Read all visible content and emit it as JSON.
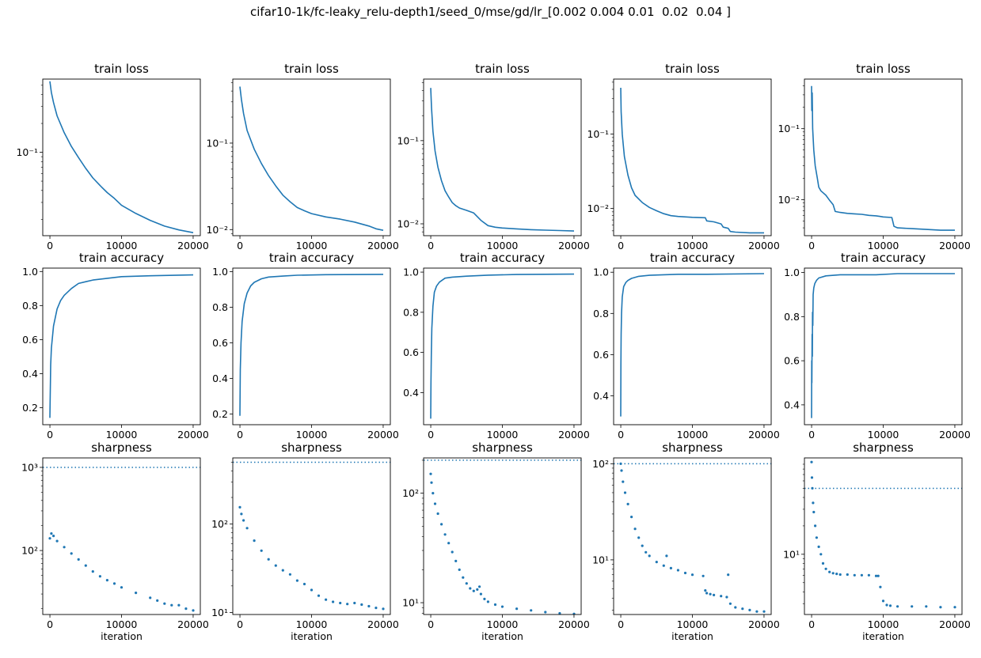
{
  "figure": {
    "suptitle": "cifar10-1k/fc-leaky_relu-depth1/seed_0/mse/gd/lr_[0.002 0.004 0.01  0.02  0.04 ]",
    "line_color": "#1f77b4"
  },
  "chart_data": [
    {
      "type": "line",
      "title": "train loss",
      "xlabel": "",
      "ylog": true,
      "xlim": [
        -1000,
        21000
      ],
      "ylim": [
        0.0135,
        0.58
      ],
      "xticks": [
        0,
        10000,
        20000
      ],
      "xtick_labels": [
        "0",
        "10000",
        "20000"
      ],
      "yticks": [
        0.1
      ],
      "ytick_labels": [
        "10⁻¹"
      ],
      "x": [
        0,
        200,
        500,
        1000,
        2000,
        3000,
        4000,
        5000,
        6000,
        7000,
        8000,
        9000,
        10000,
        12000,
        14000,
        16000,
        18000,
        20000
      ],
      "y": [
        0.55,
        0.42,
        0.33,
        0.24,
        0.16,
        0.115,
        0.088,
        0.068,
        0.054,
        0.045,
        0.038,
        0.033,
        0.028,
        0.023,
        0.0195,
        0.017,
        0.0155,
        0.0145
      ]
    },
    {
      "type": "line",
      "title": "train loss",
      "xlabel": "",
      "ylog": true,
      "xlim": [
        -1000,
        21000
      ],
      "ylim": [
        0.0085,
        0.55
      ],
      "xticks": [
        0,
        10000,
        20000
      ],
      "xtick_labels": [
        "0",
        "10000",
        "20000"
      ],
      "yticks": [
        0.1,
        0.01
      ],
      "ytick_labels": [
        "10⁻¹",
        "10⁻²"
      ],
      "x": [
        0,
        200,
        500,
        1000,
        2000,
        3000,
        4000,
        5000,
        6000,
        7000,
        8000,
        9000,
        10000,
        12000,
        14000,
        16000,
        18000,
        19000,
        20000
      ],
      "y": [
        0.45,
        0.32,
        0.22,
        0.14,
        0.085,
        0.058,
        0.042,
        0.032,
        0.025,
        0.021,
        0.018,
        0.0165,
        0.0153,
        0.014,
        0.0132,
        0.0122,
        0.011,
        0.0102,
        0.0098
      ]
    },
    {
      "type": "line",
      "title": "train loss",
      "xlabel": "",
      "ylog": true,
      "xlim": [
        -1000,
        21000
      ],
      "ylim": [
        0.0072,
        0.55
      ],
      "xticks": [
        0,
        10000,
        20000
      ],
      "xtick_labels": [
        "0",
        "10000",
        "20000"
      ],
      "yticks": [
        0.1,
        0.01
      ],
      "ytick_labels": [
        "10⁻¹",
        "10⁻²"
      ],
      "x": [
        0,
        100,
        300,
        600,
        1000,
        1500,
        2000,
        2500,
        3000,
        3500,
        4000,
        5000,
        6000,
        7000,
        8000,
        9000,
        10000,
        12000,
        14000,
        16000,
        18000,
        20000
      ],
      "y": [
        0.43,
        0.25,
        0.13,
        0.075,
        0.048,
        0.033,
        0.025,
        0.021,
        0.018,
        0.0165,
        0.0155,
        0.0145,
        0.0135,
        0.011,
        0.0095,
        0.0091,
        0.0089,
        0.0087,
        0.0085,
        0.0084,
        0.0083,
        0.0082
      ]
    },
    {
      "type": "line",
      "title": "train loss",
      "xlabel": "",
      "ylog": true,
      "xlim": [
        -1000,
        21000
      ],
      "ylim": [
        0.0043,
        0.55
      ],
      "xticks": [
        0,
        10000,
        20000
      ],
      "xtick_labels": [
        "0",
        "10000",
        "20000"
      ],
      "yticks": [
        0.1,
        0.01
      ],
      "ytick_labels": [
        "10⁻¹",
        "10⁻²"
      ],
      "x": [
        0,
        50,
        200,
        500,
        1000,
        1500,
        2000,
        3000,
        4000,
        5000,
        6000,
        7000,
        8000,
        10000,
        11800,
        12000,
        13000,
        14000,
        14300,
        15000,
        15300,
        16000,
        18000,
        20000
      ],
      "y": [
        0.42,
        0.2,
        0.1,
        0.05,
        0.028,
        0.019,
        0.015,
        0.012,
        0.0103,
        0.0093,
        0.0085,
        0.008,
        0.0078,
        0.0076,
        0.0075,
        0.0068,
        0.0066,
        0.0062,
        0.0056,
        0.0054,
        0.0049,
        0.0048,
        0.0047,
        0.0047
      ]
    },
    {
      "type": "line",
      "title": "train loss",
      "xlabel": "",
      "ylog": true,
      "xlim": [
        -1000,
        21000
      ],
      "ylim": [
        0.0031,
        0.5
      ],
      "xticks": [
        0,
        10000,
        20000
      ],
      "xtick_labels": [
        "0",
        "10000",
        "20000"
      ],
      "yticks": [
        0.1,
        0.01
      ],
      "ytick_labels": [
        "10⁻¹",
        "10⁻²"
      ],
      "x": [
        0,
        30,
        80,
        150,
        300,
        500,
        800,
        1000,
        1300,
        1600,
        2000,
        2500,
        3000,
        3300,
        4000,
        5000,
        6000,
        7000,
        8000,
        9000,
        9500,
        10000,
        11200,
        11500,
        12000,
        14000,
        16000,
        18000,
        20000
      ],
      "y": [
        0.4,
        0.18,
        0.32,
        0.1,
        0.05,
        0.03,
        0.02,
        0.015,
        0.0133,
        0.0125,
        0.0115,
        0.0098,
        0.0085,
        0.0068,
        0.0066,
        0.0064,
        0.0063,
        0.0062,
        0.006,
        0.0059,
        0.0058,
        0.0057,
        0.0056,
        0.0042,
        0.004,
        0.0039,
        0.0038,
        0.0037,
        0.0037
      ]
    },
    {
      "type": "line",
      "title": "train accuracy",
      "xlabel": "",
      "ylog": false,
      "xlim": [
        -1000,
        21000
      ],
      "ylim": [
        0.1,
        1.02
      ],
      "xticks": [
        0,
        10000,
        20000
      ],
      "xtick_labels": [
        "0",
        "10000",
        "20000"
      ],
      "yticks": [
        0.2,
        0.4,
        0.6,
        0.8,
        1.0
      ],
      "ytick_labels": [
        "0.2",
        "0.4",
        "0.6",
        "0.8",
        "1.0"
      ],
      "x": [
        0,
        100,
        200,
        500,
        1000,
        1500,
        2000,
        3000,
        4000,
        5000,
        6000,
        8000,
        10000,
        14000,
        20000
      ],
      "y": [
        0.14,
        0.45,
        0.55,
        0.68,
        0.78,
        0.83,
        0.86,
        0.9,
        0.93,
        0.94,
        0.95,
        0.96,
        0.97,
        0.975,
        0.98
      ]
    },
    {
      "type": "line",
      "title": "train accuracy",
      "xlabel": "",
      "ylog": false,
      "xlim": [
        -1000,
        21000
      ],
      "ylim": [
        0.14,
        1.02
      ],
      "xticks": [
        0,
        10000,
        20000
      ],
      "xtick_labels": [
        "0",
        "10000",
        "20000"
      ],
      "yticks": [
        0.2,
        0.4,
        0.6,
        0.8,
        1.0
      ],
      "ytick_labels": [
        "0.2",
        "0.4",
        "0.6",
        "0.8",
        "1.0"
      ],
      "x": [
        0,
        50,
        150,
        300,
        600,
        1000,
        1500,
        2000,
        3000,
        4000,
        6000,
        8000,
        12000,
        20000
      ],
      "y": [
        0.19,
        0.45,
        0.6,
        0.72,
        0.82,
        0.88,
        0.92,
        0.94,
        0.96,
        0.97,
        0.975,
        0.98,
        0.983,
        0.985
      ]
    },
    {
      "type": "line",
      "title": "train accuracy",
      "xlabel": "",
      "ylog": false,
      "xlim": [
        -1000,
        21000
      ],
      "ylim": [
        0.24,
        1.02
      ],
      "xticks": [
        0,
        10000,
        20000
      ],
      "xtick_labels": [
        "0",
        "10000",
        "20000"
      ],
      "yticks": [
        0.4,
        0.6,
        0.8,
        1.0
      ],
      "ytick_labels": [
        "0.4",
        "0.6",
        "0.8",
        "1.0"
      ],
      "x": [
        0,
        30,
        80,
        150,
        300,
        500,
        800,
        1200,
        2000,
        3000,
        5000,
        8000,
        12000,
        20000
      ],
      "y": [
        0.27,
        0.45,
        0.6,
        0.72,
        0.83,
        0.9,
        0.93,
        0.95,
        0.97,
        0.975,
        0.98,
        0.985,
        0.988,
        0.99
      ]
    },
    {
      "type": "line",
      "title": "train accuracy",
      "xlabel": "",
      "ylog": false,
      "xlim": [
        -1000,
        21000
      ],
      "ylim": [
        0.26,
        1.02
      ],
      "xticks": [
        0,
        10000,
        20000
      ],
      "xtick_labels": [
        "0",
        "10000",
        "20000"
      ],
      "yticks": [
        0.4,
        0.6,
        0.8,
        1.0
      ],
      "ytick_labels": [
        "0.4",
        "0.6",
        "0.8",
        "1.0"
      ],
      "x": [
        0,
        20,
        50,
        100,
        200,
        400,
        700,
        1000,
        1500,
        2500,
        4000,
        8000,
        12000,
        20000
      ],
      "y": [
        0.3,
        0.55,
        0.7,
        0.8,
        0.88,
        0.93,
        0.95,
        0.96,
        0.97,
        0.98,
        0.985,
        0.99,
        0.99,
        0.993
      ]
    },
    {
      "type": "line",
      "title": "train accuracy",
      "xlabel": "",
      "ylog": false,
      "xlim": [
        -1000,
        21000
      ],
      "ylim": [
        0.31,
        1.02
      ],
      "xticks": [
        0,
        10000,
        20000
      ],
      "xtick_labels": [
        "0",
        "10000",
        "20000"
      ],
      "yticks": [
        0.4,
        0.6,
        0.8,
        1.0
      ],
      "ytick_labels": [
        "0.4",
        "0.6",
        "0.8",
        "1.0"
      ],
      "x": [
        0,
        15,
        40,
        70,
        100,
        130,
        170,
        220,
        300,
        450,
        700,
        1000,
        2000,
        4000,
        9000,
        12000,
        20000
      ],
      "y": [
        0.34,
        0.6,
        0.5,
        0.72,
        0.62,
        0.82,
        0.76,
        0.9,
        0.93,
        0.95,
        0.965,
        0.975,
        0.985,
        0.99,
        0.99,
        0.995,
        0.995
      ]
    },
    {
      "type": "scatter",
      "title": "sharpness",
      "xlabel": "iteration",
      "ylog": true,
      "xlim": [
        -1000,
        21000
      ],
      "ylim": [
        17,
        1300
      ],
      "xticks": [
        0,
        10000,
        20000
      ],
      "xtick_labels": [
        "0",
        "10000",
        "20000"
      ],
      "yticks": [
        100,
        1000
      ],
      "ytick_labels": [
        "10²",
        "10³"
      ],
      "hline": 1000,
      "x": [
        0,
        200,
        500,
        1000,
        2000,
        3000,
        4000,
        5000,
        6000,
        7000,
        8000,
        9000,
        10000,
        12000,
        14000,
        15000,
        16000,
        17000,
        18000,
        19000,
        20000
      ],
      "y": [
        140,
        160,
        150,
        130,
        110,
        92,
        78,
        66,
        56,
        49,
        44,
        40,
        36,
        31,
        27,
        25,
        23,
        22,
        22,
        20,
        19
      ]
    },
    {
      "type": "scatter",
      "title": "sharpness",
      "xlabel": "iteration",
      "ylog": true,
      "xlim": [
        -1000,
        21000
      ],
      "ylim": [
        9.5,
        560
      ],
      "xticks": [
        0,
        10000,
        20000
      ],
      "xtick_labels": [
        "0",
        "10000",
        "20000"
      ],
      "yticks": [
        10,
        100
      ],
      "ytick_labels": [
        "10¹",
        "10²"
      ],
      "hline": 500,
      "x": [
        0,
        200,
        500,
        1000,
        2000,
        3000,
        4000,
        5000,
        6000,
        7000,
        8000,
        9000,
        10000,
        11000,
        12000,
        13000,
        14000,
        15000,
        16000,
        17000,
        18000,
        19000,
        20000
      ],
      "y": [
        155,
        130,
        110,
        90,
        65,
        50,
        40,
        34,
        30,
        27,
        23,
        21,
        18,
        15.5,
        14,
        13.2,
        12.8,
        12.5,
        12.8,
        12.3,
        11.8,
        11.3,
        11
      ]
    },
    {
      "type": "scatter",
      "title": "sharpness",
      "xlabel": "iteration",
      "ylog": true,
      "xlim": [
        -1000,
        21000
      ],
      "ylim": [
        7.8,
        210
      ],
      "xticks": [
        0,
        10000,
        20000
      ],
      "xtick_labels": [
        "0",
        "10000",
        "20000"
      ],
      "yticks": [
        10,
        100
      ],
      "ytick_labels": [
        "10¹",
        "10²"
      ],
      "hline": 200,
      "x": [
        0,
        100,
        300,
        600,
        1000,
        1500,
        2000,
        2500,
        3000,
        3500,
        4000,
        4500,
        5000,
        5500,
        6000,
        6500,
        6800,
        7000,
        7500,
        8000,
        9000,
        10000,
        12000,
        14000,
        16000,
        18000,
        20000
      ],
      "y": [
        150,
        125,
        100,
        80,
        65,
        52,
        42,
        35,
        29,
        24,
        20,
        17,
        15,
        13.5,
        12.8,
        13.2,
        14,
        12,
        10.8,
        10.2,
        9.6,
        9.2,
        8.8,
        8.5,
        8.2,
        8,
        7.9
      ]
    },
    {
      "type": "scatter",
      "title": "sharpness",
      "xlabel": "iteration",
      "ylog": true,
      "xlim": [
        -1000,
        21000
      ],
      "ylim": [
        2.7,
        115
      ],
      "xticks": [
        0,
        10000,
        20000
      ],
      "xtick_labels": [
        "0",
        "10000",
        "20000"
      ],
      "yticks": [
        10,
        100
      ],
      "ytick_labels": [
        "10¹",
        "10²"
      ],
      "hline": 100,
      "x": [
        0,
        100,
        300,
        600,
        1000,
        1500,
        2000,
        2500,
        3000,
        3500,
        4000,
        5000,
        6000,
        6400,
        7000,
        8000,
        9000,
        10000,
        11500,
        11800,
        12000,
        12500,
        13000,
        14000,
        14800,
        15000,
        15300,
        16000,
        17000,
        18000,
        19000,
        20000
      ],
      "y": [
        100,
        85,
        65,
        50,
        38,
        28,
        21,
        17,
        14,
        12,
        11,
        9.5,
        8.7,
        11,
        8.2,
        7.8,
        7.3,
        7,
        6.8,
        4.8,
        4.5,
        4.4,
        4.3,
        4.2,
        4.1,
        7,
        3.5,
        3.2,
        3.1,
        3,
        2.9,
        2.9
      ]
    },
    {
      "type": "scatter",
      "title": "sharpness",
      "xlabel": "iteration",
      "ylog": true,
      "xlim": [
        -1000,
        21000
      ],
      "ylim": [
        2.3,
        105
      ],
      "xticks": [
        0,
        10000,
        20000
      ],
      "xtick_labels": [
        "0",
        "10000",
        "20000"
      ],
      "yticks": [
        10
      ],
      "ytick_labels": [
        "10¹"
      ],
      "hline": 50,
      "x": [
        0,
        50,
        100,
        200,
        300,
        500,
        700,
        1000,
        1300,
        1600,
        2000,
        2500,
        3000,
        3500,
        4000,
        5000,
        6000,
        7000,
        8000,
        9000,
        9300,
        9600,
        10000,
        10500,
        11000,
        12000,
        14000,
        16000,
        18000,
        20000
      ],
      "y": [
        95,
        65,
        50,
        35,
        28,
        20,
        15,
        12,
        10,
        8,
        7,
        6.5,
        6.3,
        6.2,
        6.1,
        6.1,
        6,
        6,
        6,
        5.9,
        5.9,
        4.5,
        3.2,
        2.9,
        2.85,
        2.8,
        2.8,
        2.8,
        2.75,
        2.75
      ]
    }
  ]
}
